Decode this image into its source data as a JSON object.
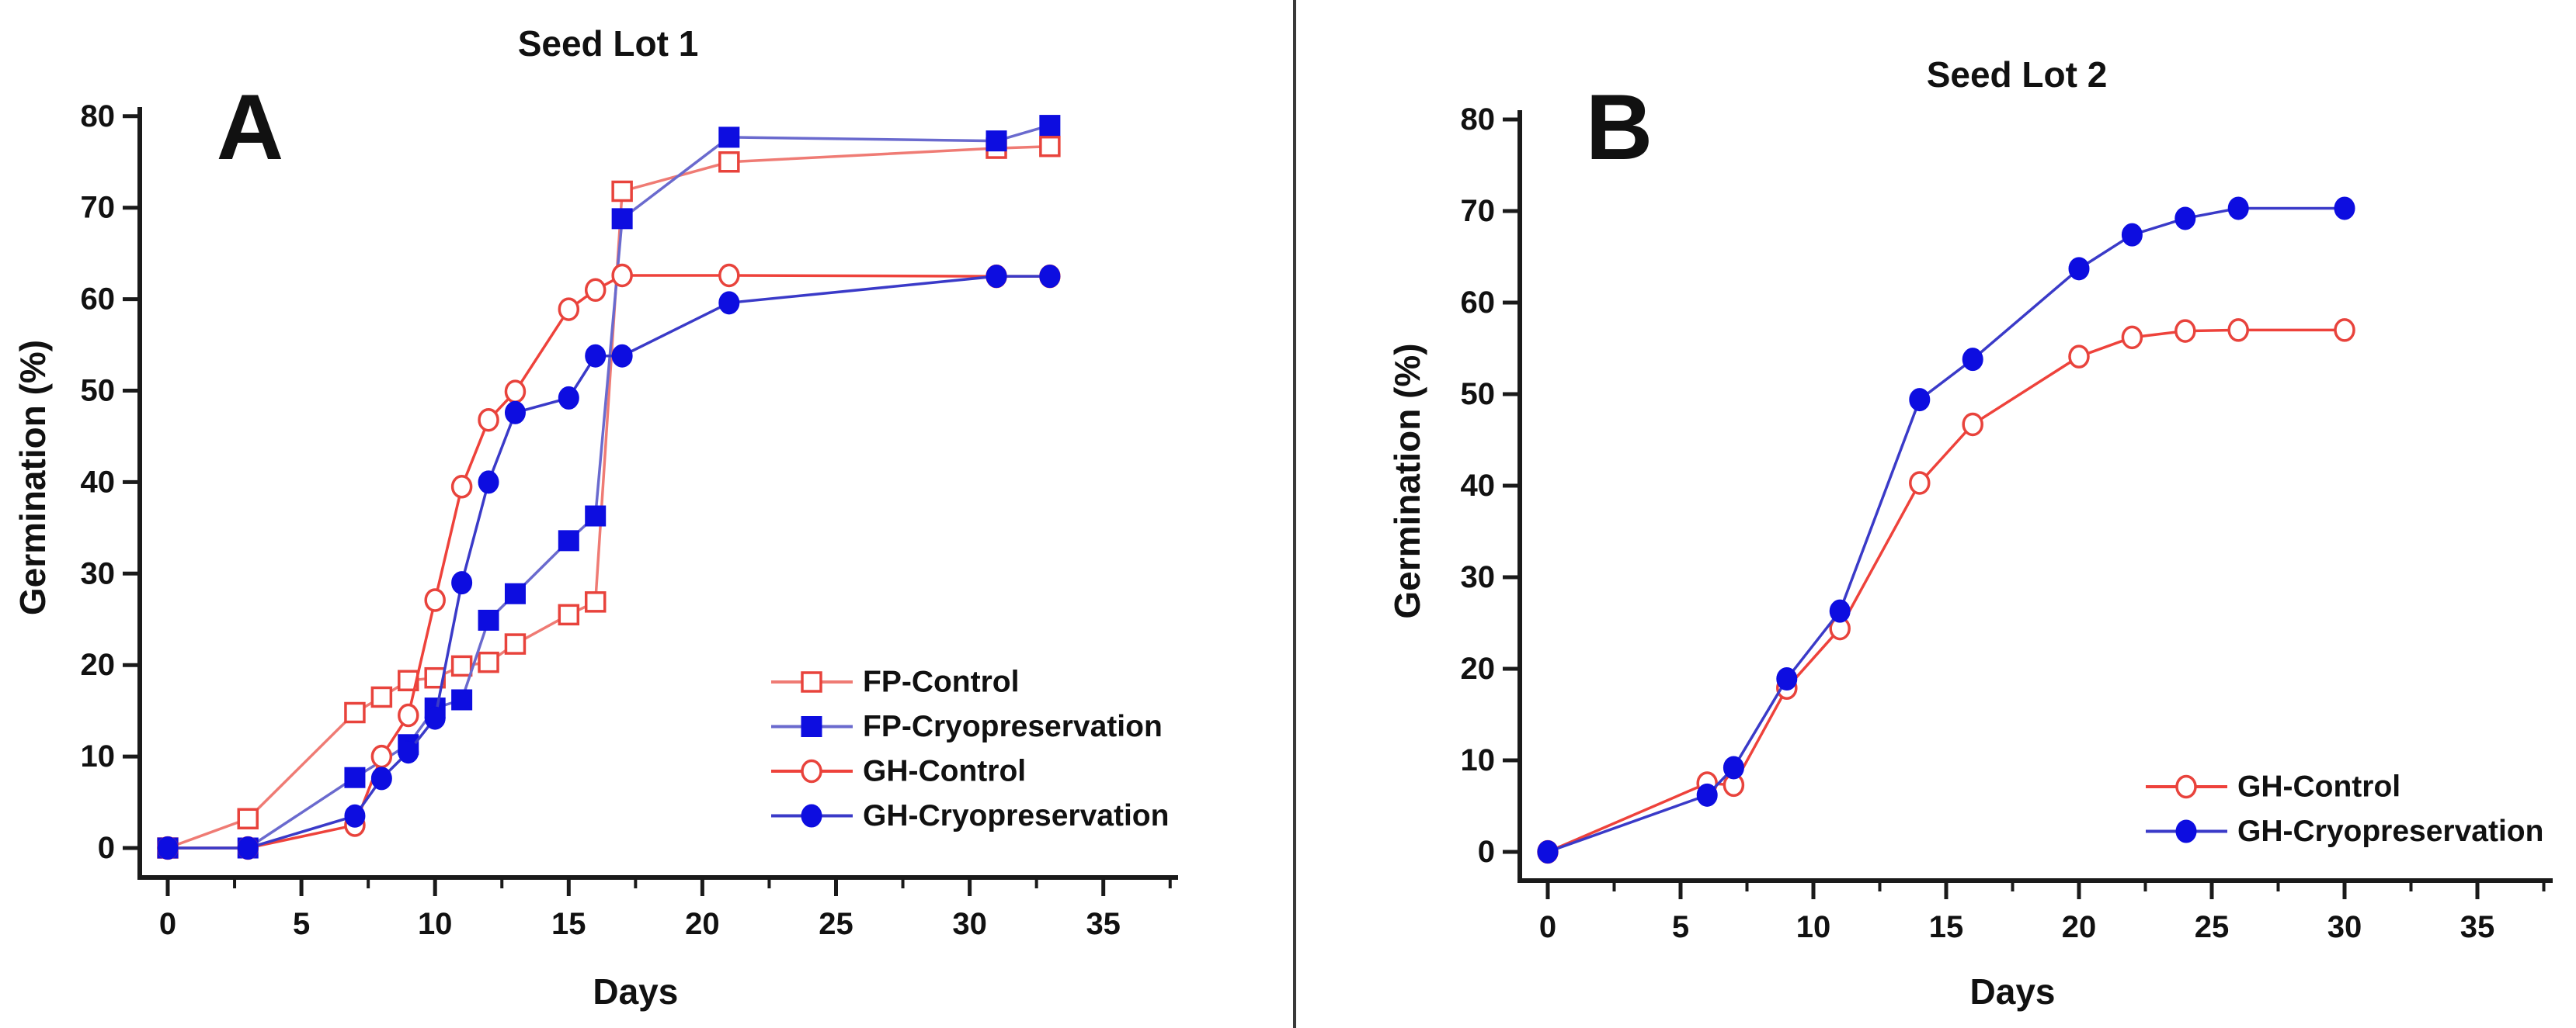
{
  "figure": {
    "background": "#ffffff",
    "divider_color": "#3a3a3a",
    "axis_color": "#1a1a1a"
  },
  "chart_data": [
    {
      "type": "line",
      "panel_label": "A",
      "title": "Seed Lot 1",
      "xlabel": "Days",
      "ylabel": "Germination (%)",
      "xlim": [
        0,
        35
      ],
      "ylim": [
        0,
        80
      ],
      "x_ticks": [
        0,
        5,
        10,
        15,
        20,
        25,
        30,
        35
      ],
      "y_ticks": [
        0,
        10,
        20,
        30,
        40,
        50,
        60,
        70,
        80
      ],
      "grid": false,
      "legend_position": "lower right",
      "series": [
        {
          "name": "FP-Control",
          "marker": "open-square",
          "line_color": "#ef7b74",
          "marker_color": "#e8433c",
          "points": [
            [
              0,
              0
            ],
            [
              3,
              3.2
            ],
            [
              7,
              14.8
            ],
            [
              8,
              16.5
            ],
            [
              9,
              18.3
            ],
            [
              10,
              18.6
            ],
            [
              11,
              19.9
            ],
            [
              12,
              20.3
            ],
            [
              13,
              22.3
            ],
            [
              15,
              25.5
            ],
            [
              16,
              26.9
            ],
            [
              17,
              71.8
            ],
            [
              21,
              75.0
            ],
            [
              31,
              76.5
            ],
            [
              33,
              76.7
            ]
          ]
        },
        {
          "name": "FP-Cryopreservation",
          "marker": "filled-square",
          "line_color": "#6a6ace",
          "marker_color": "#0d0de0",
          "points": [
            [
              0,
              0
            ],
            [
              3,
              0
            ],
            [
              7,
              7.7
            ],
            [
              9,
              11.3
            ],
            [
              10,
              15.3
            ],
            [
              11,
              16.2
            ],
            [
              12,
              24.9
            ],
            [
              13,
              27.8
            ],
            [
              15,
              33.6
            ],
            [
              16,
              36.3
            ],
            [
              17,
              68.8
            ],
            [
              21,
              77.7
            ],
            [
              31,
              77.3
            ],
            [
              33,
              79.0
            ]
          ]
        },
        {
          "name": "GH-Control",
          "marker": "open-circle",
          "line_color": "#ee423b",
          "marker_color": "#e8433c",
          "points": [
            [
              0,
              0
            ],
            [
              3,
              0
            ],
            [
              7,
              2.5
            ],
            [
              8,
              10.0
            ],
            [
              9,
              14.5
            ],
            [
              10,
              27.1
            ],
            [
              11,
              39.5
            ],
            [
              12,
              46.8
            ],
            [
              13,
              49.9
            ],
            [
              15,
              58.9
            ],
            [
              16,
              61.0
            ],
            [
              17,
              62.6
            ],
            [
              21,
              62.6
            ],
            [
              31,
              62.5
            ],
            [
              33,
              62.5
            ]
          ]
        },
        {
          "name": "GH-Cryopreservation",
          "marker": "filled-circle",
          "line_color": "#3a3ac8",
          "marker_color": "#0d0de0",
          "points": [
            [
              0,
              0
            ],
            [
              3,
              0
            ],
            [
              7,
              3.5
            ],
            [
              8,
              7.6
            ],
            [
              9,
              10.5
            ],
            [
              10,
              14.2
            ],
            [
              11,
              29.0
            ],
            [
              12,
              40.0
            ],
            [
              13,
              47.6
            ],
            [
              15,
              49.2
            ],
            [
              16,
              53.8
            ],
            [
              17,
              53.8
            ],
            [
              21,
              59.6
            ],
            [
              31,
              62.5
            ],
            [
              33,
              62.5
            ]
          ]
        }
      ]
    },
    {
      "type": "line",
      "panel_label": "B",
      "title": "Seed Lot 2",
      "xlabel": "Days",
      "ylabel": "Germination (%)",
      "xlim": [
        0,
        35
      ],
      "ylim": [
        0,
        80
      ],
      "x_ticks": [
        0,
        5,
        10,
        15,
        20,
        25,
        30,
        35
      ],
      "y_ticks": [
        0,
        10,
        20,
        30,
        40,
        50,
        60,
        70,
        80
      ],
      "grid": false,
      "legend_position": "lower right",
      "series": [
        {
          "name": "GH-Control",
          "marker": "open-circle",
          "line_color": "#ee423b",
          "marker_color": "#e8433c",
          "points": [
            [
              0,
              0
            ],
            [
              6,
              7.5
            ],
            [
              7,
              7.3
            ],
            [
              9,
              17.9
            ],
            [
              11,
              24.4
            ],
            [
              14,
              40.3
            ],
            [
              16,
              46.7
            ],
            [
              20,
              54.1
            ],
            [
              22,
              56.2
            ],
            [
              24,
              56.9
            ],
            [
              26,
              57.0
            ],
            [
              30,
              57.0
            ]
          ]
        },
        {
          "name": "GH-Cryopreservation",
          "marker": "filled-circle",
          "line_color": "#3a3ac8",
          "marker_color": "#0d0de0",
          "points": [
            [
              0,
              0
            ],
            [
              6,
              6.2
            ],
            [
              7,
              9.2
            ],
            [
              9,
              18.9
            ],
            [
              11,
              26.3
            ],
            [
              14,
              49.4
            ],
            [
              16,
              53.8
            ],
            [
              20,
              63.7
            ],
            [
              22,
              67.4
            ],
            [
              24,
              69.2
            ],
            [
              26,
              70.3
            ],
            [
              30,
              70.3
            ]
          ]
        }
      ]
    }
  ]
}
